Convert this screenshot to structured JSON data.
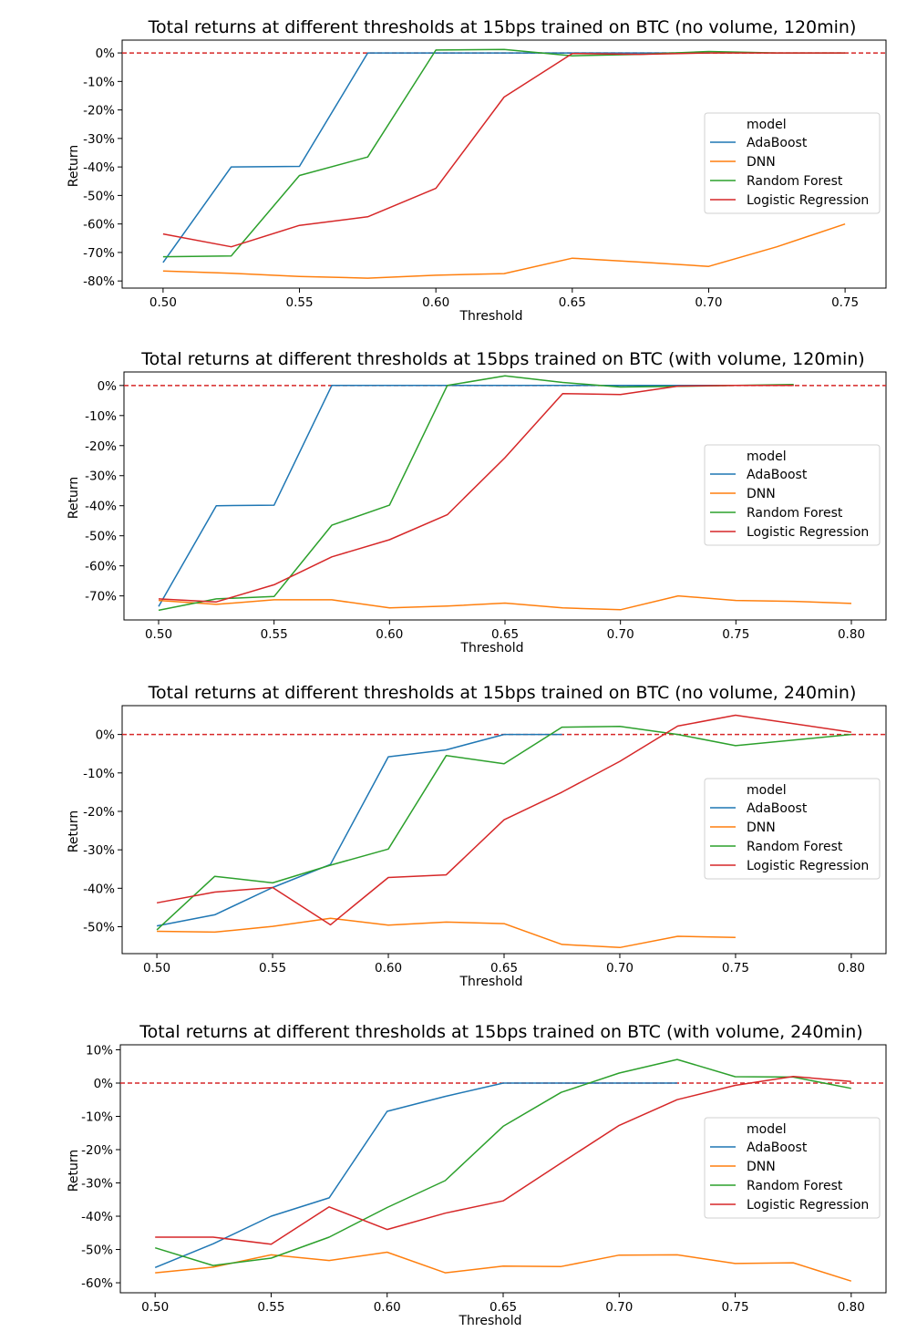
{
  "figure": {
    "y_axis_label": "Return",
    "x_axis_label": "Threshold",
    "legend_title": "model"
  },
  "series_colors": {
    "AdaBoost": "#1f77b4",
    "DNN": "#ff7f0e",
    "Random Forest": "#2ca02c",
    "Logistic Regression": "#d62728",
    "zero_line": "#d62728"
  },
  "chart_data": [
    {
      "type": "line",
      "title": "Total returns at different thresholds at 15bps trained on BTC (no volume, 120min)",
      "xlabel": "Threshold",
      "ylabel": "Return",
      "xlim": [
        0.485,
        0.765
      ],
      "ylim": [
        -82.5,
        4.5
      ],
      "x_ticks": [
        "0.50",
        "0.55",
        "0.60",
        "0.65",
        "0.70",
        "0.75"
      ],
      "y_ticks": [
        "0%",
        "-10%",
        "-20%",
        "-30%",
        "-40%",
        "-50%",
        "-60%",
        "-70%",
        "-80%"
      ],
      "reference_line": {
        "y": 0,
        "style": "dashed"
      },
      "legend": {
        "title": "model",
        "position": "right"
      },
      "series": [
        {
          "name": "AdaBoost",
          "x": [
            0.5,
            0.525,
            0.55,
            0.575,
            0.6,
            0.625,
            0.65,
            0.675,
            0.7
          ],
          "y": [
            -73.5,
            -40,
            -39.8,
            0,
            0,
            0,
            0,
            0,
            0
          ]
        },
        {
          "name": "DNN",
          "x": [
            0.5,
            0.525,
            0.55,
            0.575,
            0.6,
            0.625,
            0.65,
            0.675,
            0.7,
            0.725,
            0.75
          ],
          "y": [
            -76.5,
            -77.3,
            -78.4,
            -79,
            -78,
            -77.4,
            -72,
            -73.4,
            -74.9,
            -68,
            -60
          ]
        },
        {
          "name": "Random Forest",
          "x": [
            0.5,
            0.525,
            0.55,
            0.575,
            0.6,
            0.625,
            0.65,
            0.675,
            0.7,
            0.725,
            0.75
          ],
          "y": [
            -71.5,
            -71.2,
            -43,
            -36.5,
            1,
            1.2,
            -1,
            -0.5,
            0.5,
            0,
            0
          ]
        },
        {
          "name": "Logistic Regression",
          "x": [
            0.5,
            0.525,
            0.55,
            0.575,
            0.6,
            0.625,
            0.65,
            0.675,
            0.7,
            0.725,
            0.75
          ],
          "y": [
            -63.5,
            -68,
            -60.5,
            -57.5,
            -47.5,
            -15.5,
            -0.2,
            -0.5,
            0,
            0,
            0
          ]
        }
      ]
    },
    {
      "type": "line",
      "title": "Total returns at different thresholds at 15bps trained on BTC (with volume, 120min)",
      "xlabel": "Threshold",
      "ylabel": "Return",
      "xlim": [
        0.485,
        0.815
      ],
      "ylim": [
        -78,
        4.5
      ],
      "x_ticks": [
        "0.50",
        "0.55",
        "0.60",
        "0.65",
        "0.70",
        "0.75",
        "0.80"
      ],
      "y_ticks": [
        "0%",
        "-10%",
        "-20%",
        "-30%",
        "-40%",
        "-50%",
        "-60%",
        "-70%"
      ],
      "reference_line": {
        "y": 0,
        "style": "dashed"
      },
      "legend": {
        "title": "model",
        "position": "right"
      },
      "series": [
        {
          "name": "AdaBoost",
          "x": [
            0.5,
            0.525,
            0.55,
            0.575,
            0.6,
            0.625,
            0.65,
            0.675,
            0.7,
            0.725,
            0.75,
            0.775
          ],
          "y": [
            -73.5,
            -40,
            -39.8,
            0,
            0,
            0,
            0,
            0,
            0,
            0,
            0,
            0
          ]
        },
        {
          "name": "DNN",
          "x": [
            0.5,
            0.525,
            0.55,
            0.575,
            0.6,
            0.625,
            0.65,
            0.675,
            0.7,
            0.725,
            0.75,
            0.775,
            0.8
          ],
          "y": [
            -71.5,
            -72.8,
            -71.3,
            -71.3,
            -74,
            -73.4,
            -72.4,
            -74,
            -74.6,
            -70,
            -71.5,
            -71.8,
            -72.5
          ]
        },
        {
          "name": "Random Forest",
          "x": [
            0.5,
            0.525,
            0.55,
            0.575,
            0.6,
            0.625,
            0.65,
            0.675,
            0.7,
            0.725,
            0.75,
            0.775
          ],
          "y": [
            -74.8,
            -71,
            -70.2,
            -46.5,
            -39.8,
            0,
            3.2,
            1,
            -0.5,
            -0.3,
            0,
            0.3
          ]
        },
        {
          "name": "Logistic Regression",
          "x": [
            0.5,
            0.525,
            0.55,
            0.575,
            0.6,
            0.625,
            0.65,
            0.675,
            0.7,
            0.725,
            0.75,
            0.775
          ],
          "y": [
            -71,
            -72,
            -66.3,
            -57,
            -51.3,
            -43,
            -24,
            -2.7,
            -3,
            -0.2,
            0,
            0
          ]
        }
      ]
    },
    {
      "type": "line",
      "title": "Total returns at different thresholds at 15bps trained on BTC (no volume, 240min)",
      "xlabel": "Threshold",
      "ylabel": "Return",
      "xlim": [
        0.485,
        0.815
      ],
      "ylim": [
        -57,
        7.5
      ],
      "x_ticks": [
        "0.50",
        "0.55",
        "0.60",
        "0.65",
        "0.70",
        "0.75",
        "0.80"
      ],
      "y_ticks": [
        "0%",
        "-10%",
        "-20%",
        "-30%",
        "-40%",
        "-50%"
      ],
      "reference_line": {
        "y": 0,
        "style": "dashed"
      },
      "legend": {
        "title": "model",
        "position": "right"
      },
      "series": [
        {
          "name": "AdaBoost",
          "x": [
            0.5,
            0.525,
            0.55,
            0.575,
            0.6,
            0.625,
            0.65,
            0.675
          ],
          "y": [
            -49.8,
            -46.9,
            -39.8,
            -33.8,
            -5.8,
            -4,
            0,
            0
          ]
        },
        {
          "name": "DNN",
          "x": [
            0.5,
            0.525,
            0.55,
            0.575,
            0.6,
            0.625,
            0.65,
            0.675,
            0.7,
            0.725,
            0.75
          ],
          "y": [
            -51.2,
            -51.4,
            -49.9,
            -47.8,
            -49.6,
            -48.8,
            -49.2,
            -54.6,
            -55.4,
            -52.5,
            -52.8
          ]
        },
        {
          "name": "Random Forest",
          "x": [
            0.5,
            0.525,
            0.55,
            0.575,
            0.6,
            0.625,
            0.65,
            0.675,
            0.7,
            0.725,
            0.75,
            0.8
          ],
          "y": [
            -50.8,
            -36.9,
            -38.6,
            -34,
            -29.8,
            -5.5,
            -7.6,
            1.9,
            2.1,
            0,
            -2.9,
            0
          ]
        },
        {
          "name": "Logistic Regression",
          "x": [
            0.5,
            0.525,
            0.55,
            0.575,
            0.6,
            0.625,
            0.65,
            0.675,
            0.7,
            0.725,
            0.75,
            0.8
          ],
          "y": [
            -43.8,
            -41,
            -39.8,
            -49.5,
            -37.2,
            -36.5,
            -22.2,
            -15,
            -7,
            2.2,
            5,
            0.6
          ]
        }
      ]
    },
    {
      "type": "line",
      "title": "Total returns at different thresholds at 15bps trained on BTC (with volume, 240min)",
      "xlabel": "Threshold",
      "ylabel": "Return",
      "xlim": [
        0.485,
        0.815
      ],
      "ylim": [
        -63,
        11.5
      ],
      "x_ticks": [
        "0.50",
        "0.55",
        "0.60",
        "0.65",
        "0.70",
        "0.75",
        "0.80"
      ],
      "y_ticks": [
        "10%",
        "0%",
        "-10%",
        "-20%",
        "-30%",
        "-40%",
        "-50%",
        "-60%"
      ],
      "reference_line": {
        "y": 0,
        "style": "dashed"
      },
      "legend": {
        "title": "model",
        "position": "right"
      },
      "series": [
        {
          "name": "AdaBoost",
          "x": [
            0.5,
            0.525,
            0.55,
            0.575,
            0.6,
            0.625,
            0.65,
            0.675,
            0.7,
            0.725
          ],
          "y": [
            -55.4,
            -48.3,
            -40,
            -34.5,
            -8.5,
            -4,
            0,
            0,
            0,
            0
          ]
        },
        {
          "name": "DNN",
          "x": [
            0.5,
            0.525,
            0.55,
            0.575,
            0.6,
            0.625,
            0.65,
            0.675,
            0.7,
            0.725,
            0.75,
            0.775,
            0.8
          ],
          "y": [
            -57,
            -55.3,
            -51.6,
            -53.3,
            -50.8,
            -57,
            -55,
            -55.1,
            -51.7,
            -51.6,
            -54.2,
            -54,
            -59.5
          ]
        },
        {
          "name": "Random Forest",
          "x": [
            0.5,
            0.525,
            0.55,
            0.575,
            0.6,
            0.625,
            0.65,
            0.675,
            0.7,
            0.725,
            0.75,
            0.775,
            0.8
          ],
          "y": [
            -49.5,
            -54.8,
            -52.6,
            -46.3,
            -37.4,
            -29.3,
            -13,
            -2.8,
            3,
            7.1,
            1.9,
            1.8,
            -1.6
          ]
        },
        {
          "name": "Logistic Regression",
          "x": [
            0.5,
            0.525,
            0.55,
            0.575,
            0.6,
            0.625,
            0.65,
            0.675,
            0.7,
            0.725,
            0.75,
            0.775,
            0.8
          ],
          "y": [
            -46.3,
            -46.3,
            -48.4,
            -37.2,
            -44,
            -39.1,
            -35.4,
            -24,
            -12.7,
            -5,
            -0.7,
            2,
            0.5
          ]
        }
      ]
    }
  ]
}
